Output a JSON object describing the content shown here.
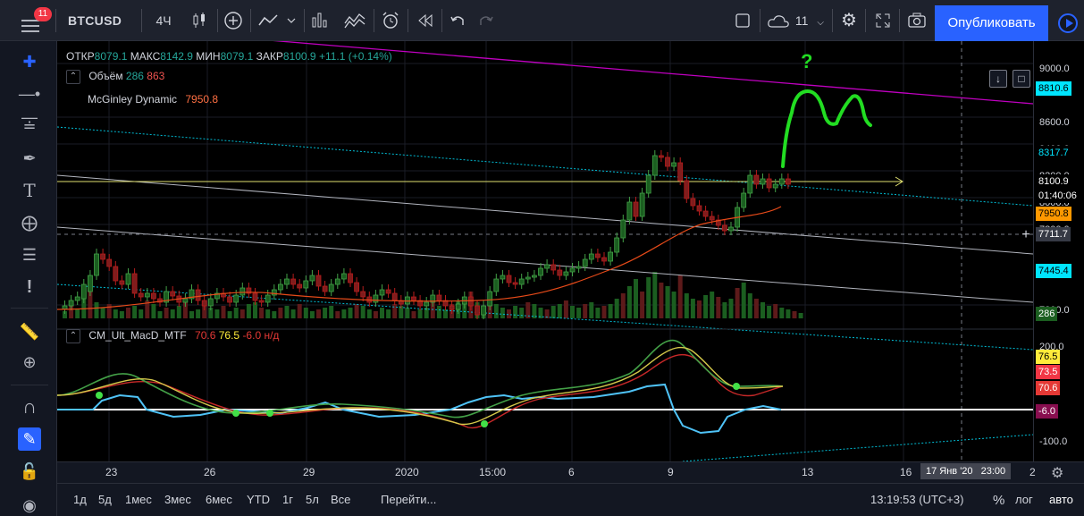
{
  "toolbar": {
    "notifications": "11",
    "symbol": "BTCUSD",
    "interval": "4Ч",
    "alerts_count": "11",
    "publish_label": "Опубликовать"
  },
  "legend": {
    "ohlc": {
      "open_label": "ОТКР",
      "open": "8079.1",
      "high_label": "МАКС",
      "high": "8142.9",
      "low_label": "МИН",
      "low": "8079.1",
      "close_label": "ЗАКР",
      "close": "8100.9",
      "change": "+11.1 (+0.14%)"
    },
    "volume": {
      "label": "Объём",
      "v1": "286",
      "v2": "863"
    },
    "mcginley": {
      "label": "McGinley Dynamic",
      "value": "7950.8"
    },
    "macd": {
      "label": "CM_Ult_MacD_MTF",
      "v1": "70.6",
      "v2": "76.5",
      "v3": "-6.0",
      "v4": "н/д"
    }
  },
  "annotation_text": "?",
  "price_axis": {
    "ticks": [
      "9000.0",
      "8600.0",
      "8400.0",
      "8200.0",
      "8000.0",
      "7800.0",
      "7200.0"
    ],
    "tags": [
      {
        "text": "8810.6",
        "bg": "#00e5ff",
        "fg": "#000000"
      },
      {
        "text": "8317.7",
        "bg": "#000000",
        "fg": "#00e5ff"
      },
      {
        "text": "8100.9",
        "bg": "#000000",
        "fg": "#ffffff"
      },
      {
        "text": "01:40:06",
        "bg": "#000000",
        "fg": "#ffffff"
      },
      {
        "text": "7950.8",
        "bg": "#ff9800",
        "fg": "#000000"
      },
      {
        "text": "7711.7",
        "bg": "#363a45",
        "fg": "#ffffff"
      },
      {
        "text": "7445.4",
        "bg": "#00e5ff",
        "fg": "#000000"
      },
      {
        "text": "286",
        "bg": "#1b5e20",
        "fg": "#ffffff"
      }
    ],
    "macd_ticks": [
      "200.0",
      "-100.0"
    ],
    "macd_tags": [
      {
        "text": "76.5",
        "bg": "#ffeb3b",
        "fg": "#000000"
      },
      {
        "text": "73.5",
        "bg": "#f23645",
        "fg": "#ffffff"
      },
      {
        "text": "70.6",
        "bg": "#e53935",
        "fg": "#ffffff"
      },
      {
        "text": "-6.0",
        "bg": "#880e4f",
        "fg": "#ffffff"
      }
    ]
  },
  "time_axis": {
    "labels": [
      "23",
      "26",
      "29",
      "2020",
      "15:00",
      "6",
      "9",
      "13",
      "16",
      "2"
    ],
    "crosshair_date": "17 Янв '20",
    "crosshair_time": "23:00"
  },
  "bottombar": {
    "ranges": [
      "1д",
      "5д",
      "1мес",
      "3мес",
      "6мес",
      "YTD",
      "1г",
      "5л",
      "Все"
    ],
    "goto": "Перейти...",
    "clock": "13:19:53 (UTC+3)",
    "percent": "%",
    "log": "лог",
    "auto": "авто"
  },
  "colors": {
    "up": "#26a69a",
    "down": "#ef5350",
    "accent": "#2962ff"
  }
}
